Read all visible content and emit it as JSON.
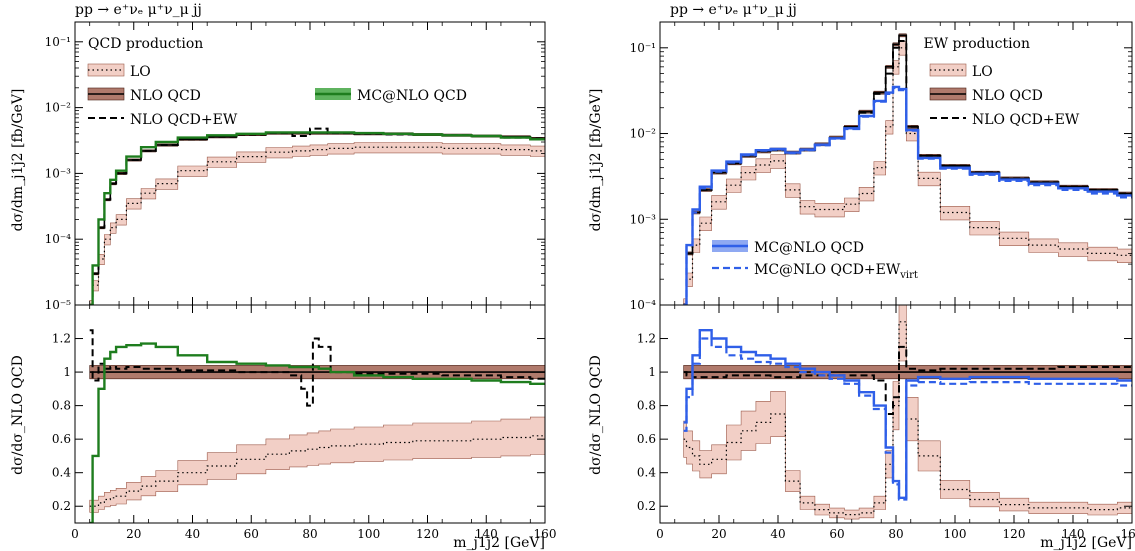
{
  "colors": {
    "lo_fill": "#f2cfc6",
    "lo_edge": "#9c5a4a",
    "nlo_fill": "#b07a6c",
    "nlo_edge": "#4a1f14",
    "mcnlo_qcd_left": "#1e7d1e",
    "mcnlo_fill_left": "#5fb35f",
    "mcnlo_qcd_right": "#2f5fe8",
    "mcnlo_fill_right": "#8fa9f2",
    "nlo_ew": "#000000"
  },
  "chart_data": [
    {
      "type": "line",
      "panel": "left",
      "process_label": "pp → e⁺νₑ μ⁺ν_μ jj",
      "title": "QCD production",
      "xlabel": "m_j1j2 [GeV]",
      "ylabel_main": "dσ/dm_j1j2 [fb/GeV]",
      "ylabel_ratio": "dσ/dσ_NLO QCD",
      "xlim": [
        0,
        160
      ],
      "ylim_main": [
        1e-05,
        0.2
      ],
      "yscale_main": "log",
      "ylim_ratio": [
        0.1,
        1.4
      ],
      "xticks": [
        "0",
        "20",
        "40",
        "60",
        "80",
        "100",
        "120",
        "140",
        "160"
      ],
      "yticks_main": [
        "10⁻⁵",
        "10⁻⁴",
        "10⁻³",
        "10⁻²",
        "10⁻¹"
      ],
      "yticks_ratio": [
        "0.2",
        "0.4",
        "0.6",
        "0.8",
        "1",
        "1.2"
      ],
      "legend": [
        {
          "label": "LO",
          "style": "lo"
        },
        {
          "label": "NLO QCD",
          "style": "nlo"
        },
        {
          "label": "NLO QCD+EW",
          "style": "dash"
        },
        {
          "label": "MC@NLO QCD",
          "style": "mc"
        }
      ],
      "x": [
        5,
        7,
        9,
        11,
        13,
        15,
        20,
        25,
        30,
        40,
        50,
        60,
        70,
        78,
        82,
        90,
        100,
        110,
        120,
        130,
        140,
        150,
        160
      ],
      "series": [
        {
          "name": "LO",
          "values": [
            1e-05,
            2e-05,
            5e-05,
            0.0001,
            0.00015,
            0.0002,
            0.00035,
            0.0005,
            0.0007,
            0.0011,
            0.0015,
            0.0018,
            0.0021,
            0.0022,
            0.0023,
            0.0024,
            0.0025,
            0.0025,
            0.0025,
            0.0024,
            0.0024,
            0.0023,
            0.0022
          ]
        },
        {
          "name": "NLO QCD",
          "values": [
            1e-05,
            3e-05,
            0.00015,
            0.0004,
            0.0007,
            0.001,
            0.0016,
            0.0022,
            0.0027,
            0.0033,
            0.0036,
            0.0039,
            0.0041,
            0.0041,
            0.0041,
            0.0041,
            0.004,
            0.004,
            0.0039,
            0.0038,
            0.0037,
            0.0036,
            0.0034
          ]
        },
        {
          "name": "NLO QCD+EW",
          "values": [
            1e-05,
            3e-05,
            0.00015,
            0.0004,
            0.0007,
            0.001,
            0.0016,
            0.0022,
            0.0027,
            0.0033,
            0.0036,
            0.0039,
            0.0041,
            0.0037,
            0.0048,
            0.0041,
            0.004,
            0.0039,
            0.0039,
            0.0038,
            0.0037,
            0.0035,
            0.0034
          ]
        },
        {
          "name": "MC@NLO QCD",
          "values": [
            1e-05,
            4e-05,
            0.0002,
            0.0005,
            0.0008,
            0.0011,
            0.0018,
            0.0025,
            0.003,
            0.0035,
            0.0038,
            0.004,
            0.0042,
            0.0042,
            0.0042,
            0.0042,
            0.0041,
            0.004,
            0.0039,
            0.0038,
            0.0037,
            0.0035,
            0.0033
          ]
        }
      ],
      "ratio": {
        "x": [
          5,
          7,
          9,
          11,
          13,
          15,
          20,
          25,
          30,
          40,
          50,
          60,
          70,
          76,
          78,
          80,
          82,
          84,
          90,
          100,
          110,
          120,
          130,
          140,
          150,
          160
        ],
        "series": [
          {
            "name": "LO",
            "values": [
              0.2,
              0.2,
              0.22,
              0.24,
              0.25,
              0.26,
              0.29,
              0.32,
              0.35,
              0.4,
              0.44,
              0.48,
              0.51,
              0.53,
              0.53,
              0.54,
              0.54,
              0.55,
              0.56,
              0.57,
              0.58,
              0.59,
              0.59,
              0.6,
              0.61,
              0.62
            ]
          },
          {
            "name": "NLO QCD",
            "values": [
              1,
              1,
              1,
              1,
              1,
              1,
              1,
              1,
              1,
              1,
              1,
              1,
              1,
              1,
              1,
              1,
              1,
              1,
              1,
              1,
              1,
              1,
              1,
              1,
              1,
              1
            ]
          },
          {
            "name": "NLO QCD+EW",
            "values": [
              1.25,
              0.95,
              1.05,
              1.02,
              1.03,
              1.02,
              1.03,
              1.02,
              1.02,
              1.01,
              1.01,
              1.0,
              1.0,
              0.98,
              0.9,
              0.8,
              1.2,
              1.15,
              1.0,
              0.99,
              0.99,
              0.99,
              0.98,
              0.98,
              0.97,
              0.96
            ]
          },
          {
            "name": "MC@NLO QCD",
            "values": [
              0.1,
              0.5,
              0.9,
              1.08,
              1.12,
              1.15,
              1.16,
              1.17,
              1.15,
              1.1,
              1.06,
              1.05,
              1.04,
              1.03,
              1.03,
              1.03,
              1.03,
              1.02,
              1.0,
              0.98,
              0.97,
              0.96,
              0.96,
              0.95,
              0.94,
              0.93
            ]
          }
        ]
      }
    },
    {
      "type": "line",
      "panel": "right",
      "process_label": "pp → e⁺νₑ μ⁺ν_μ jj",
      "title": "EW production",
      "xlabel": "m_j1j2 [GeV]",
      "ylabel_main": "dσ/dm_j1j2 [fb/GeV]",
      "ylabel_ratio": "dσ/dσ_NLO QCD",
      "xlim": [
        0,
        160
      ],
      "ylim_main": [
        0.0001,
        0.2
      ],
      "yscale_main": "log",
      "ylim_ratio": [
        0.1,
        1.4
      ],
      "xticks": [
        "0",
        "20",
        "40",
        "60",
        "80",
        "100",
        "120",
        "140",
        "160"
      ],
      "yticks_main": [
        "10⁻⁴",
        "10⁻³",
        "10⁻²",
        "10⁻¹"
      ],
      "yticks_ratio": [
        "0.2",
        "0.4",
        "0.6",
        "0.8",
        "1",
        "1.2"
      ],
      "legend": [
        {
          "label": "LO",
          "style": "lo"
        },
        {
          "label": "NLO QCD",
          "style": "nlo"
        },
        {
          "label": "NLO QCD+EW",
          "style": "dash"
        },
        {
          "label": "MC@NLO QCD",
          "style": "mc"
        },
        {
          "label": "MC@NLO QCD+EW",
          "sub": "virt",
          "style": "mcdash"
        }
      ],
      "x": [
        8,
        10,
        12,
        15,
        20,
        25,
        30,
        35,
        40,
        45,
        50,
        55,
        60,
        65,
        70,
        75,
        78,
        80,
        82,
        85,
        90,
        100,
        110,
        120,
        130,
        140,
        150,
        160
      ],
      "series": [
        {
          "name": "LO",
          "values": [
            0.0001,
            0.0002,
            0.0005,
            0.0009,
            0.0016,
            0.0025,
            0.0035,
            0.0043,
            0.0048,
            0.0022,
            0.0014,
            0.0013,
            0.0013,
            0.0015,
            0.002,
            0.004,
            0.012,
            0.06,
            0.1,
            0.01,
            0.003,
            0.0012,
            0.0008,
            0.0006,
            0.0005,
            0.00045,
            0.0004,
            0.00038
          ]
        },
        {
          "name": "NLO QCD",
          "values": [
            0.0001,
            0.0004,
            0.0012,
            0.0022,
            0.0035,
            0.0045,
            0.0055,
            0.0062,
            0.0065,
            0.006,
            0.0065,
            0.0075,
            0.009,
            0.012,
            0.018,
            0.03,
            0.06,
            0.11,
            0.14,
            0.012,
            0.0055,
            0.0042,
            0.0035,
            0.003,
            0.0027,
            0.0024,
            0.0022,
            0.002
          ]
        },
        {
          "name": "NLO QCD+EW",
          "values": [
            0.0001,
            0.0004,
            0.0012,
            0.0022,
            0.0035,
            0.0045,
            0.0055,
            0.0062,
            0.0064,
            0.0059,
            0.0064,
            0.0074,
            0.0088,
            0.0118,
            0.0175,
            0.029,
            0.05,
            0.1,
            0.12,
            0.012,
            0.0055,
            0.0042,
            0.0035,
            0.003,
            0.0027,
            0.0024,
            0.0022,
            0.002
          ]
        },
        {
          "name": "MC@NLO QCD",
          "values": [
            0.0001,
            0.0005,
            0.0013,
            0.0024,
            0.0037,
            0.0047,
            0.0057,
            0.0064,
            0.0066,
            0.006,
            0.0065,
            0.0074,
            0.0088,
            0.0115,
            0.016,
            0.024,
            0.03,
            0.035,
            0.033,
            0.011,
            0.0052,
            0.004,
            0.0034,
            0.0029,
            0.0026,
            0.0023,
            0.0021,
            0.0019
          ]
        },
        {
          "name": "MC@NLO QCD+EW_virt",
          "values": [
            0.0001,
            0.0005,
            0.0012,
            0.0023,
            0.0036,
            0.0046,
            0.0056,
            0.0063,
            0.0065,
            0.0059,
            0.0064,
            0.0073,
            0.0087,
            0.0113,
            0.0157,
            0.0235,
            0.029,
            0.034,
            0.032,
            0.0108,
            0.0051,
            0.0039,
            0.0033,
            0.0028,
            0.0025,
            0.0022,
            0.002,
            0.0018
          ]
        }
      ],
      "ratio": {
        "x": [
          8,
          10,
          12,
          15,
          20,
          25,
          30,
          35,
          40,
          45,
          50,
          55,
          60,
          65,
          70,
          75,
          78,
          80,
          82,
          85,
          90,
          100,
          110,
          120,
          130,
          140,
          150,
          160
        ],
        "series": [
          {
            "name": "LO",
            "values": [
              0.6,
              0.55,
              0.5,
              0.45,
              0.48,
              0.58,
              0.65,
              0.7,
              0.75,
              0.35,
              0.22,
              0.18,
              0.16,
              0.15,
              0.16,
              0.22,
              0.45,
              0.8,
              1.3,
              0.72,
              0.5,
              0.3,
              0.24,
              0.21,
              0.19,
              0.19,
              0.18,
              0.19
            ]
          },
          {
            "name": "NLO QCD",
            "values": [
              1,
              1,
              1,
              1,
              1,
              1,
              1,
              1,
              1,
              1,
              1,
              1,
              1,
              1,
              1,
              1,
              1,
              1,
              1,
              1,
              1,
              1,
              1,
              1,
              1,
              1,
              1,
              1
            ]
          },
          {
            "name": "NLO QCD+EW",
            "values": [
              1.0,
              0.98,
              0.97,
              0.97,
              0.97,
              0.98,
              0.98,
              0.98,
              0.97,
              0.97,
              0.98,
              0.98,
              0.98,
              0.98,
              0.98,
              0.95,
              0.75,
              0.85,
              1.15,
              1.02,
              1.01,
              1.02,
              1.02,
              1.02,
              1.02,
              1.03,
              1.03,
              1.03
            ]
          },
          {
            "name": "MC@NLO QCD",
            "values": [
              0.7,
              0.9,
              1.1,
              1.25,
              1.2,
              1.15,
              1.12,
              1.1,
              1.08,
              1.05,
              1.02,
              1.0,
              0.98,
              0.95,
              0.88,
              0.8,
              0.55,
              0.35,
              0.25,
              0.95,
              0.97,
              0.96,
              0.97,
              0.97,
              0.96,
              0.96,
              0.96,
              0.95
            ]
          },
          {
            "name": "MC@NLO QCD+EW_virt",
            "values": [
              0.65,
              0.85,
              1.05,
              1.2,
              1.15,
              1.1,
              1.08,
              1.06,
              1.05,
              1.03,
              1.0,
              0.98,
              0.96,
              0.93,
              0.86,
              0.78,
              0.52,
              0.33,
              0.24,
              0.92,
              0.94,
              0.93,
              0.94,
              0.94,
              0.93,
              0.93,
              0.93,
              0.92
            ]
          }
        ]
      }
    }
  ]
}
